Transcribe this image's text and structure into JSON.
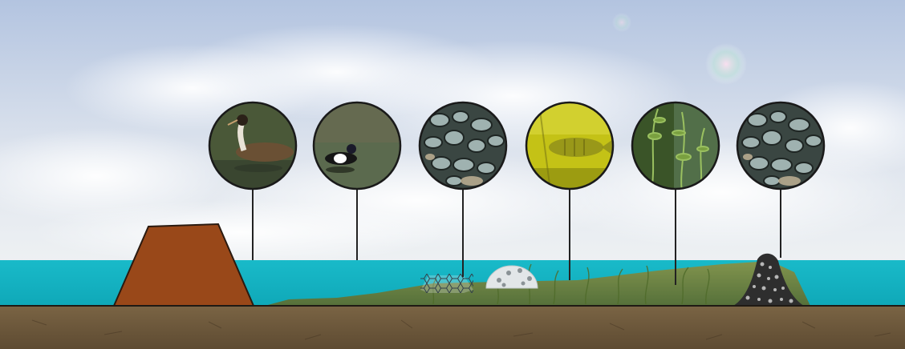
{
  "scene": {
    "colors": {
      "sky_top": "#b9c8e2",
      "sky_bottom": "#e9edf1",
      "water": "#17b5c4",
      "dike": "#9b4a1a",
      "soil": "#6e5a3e",
      "shoal": "#8a8a3a",
      "mesh": "#e8eef2",
      "reef_dome": "#dfe3e6",
      "stone_mound": "#2b2b2b"
    },
    "circles": [
      {
        "name": "grebe-photo",
        "icon": "great-crested-grebe",
        "bg": "#4c5a3a"
      },
      {
        "name": "tufted-duck-photo",
        "icon": "tufted-duck",
        "bg": "#5e6a52"
      },
      {
        "name": "mussel-photo",
        "icon": "zebra-mussels",
        "bg": "#3d4a45"
      },
      {
        "name": "perch-photo",
        "icon": "perch-underwater",
        "bg": "#c8c414"
      },
      {
        "name": "water-plant-photo",
        "icon": "submerged-plants",
        "bg": "#3f5a2c"
      },
      {
        "name": "mussel-photo-2",
        "icon": "zebra-mussels",
        "bg": "#3d4a45"
      }
    ]
  }
}
